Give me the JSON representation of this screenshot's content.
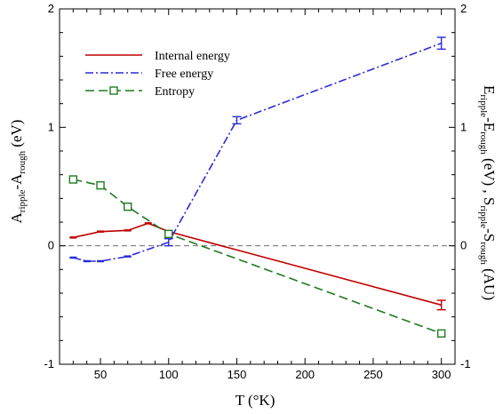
{
  "chart_data": {
    "type": "line",
    "xlabel": "T (°K)",
    "ylabel_left": {
      "main": "A",
      "sub1": "ripple",
      "mid": "-A",
      "sub2": "rough",
      "unit": " (eV)"
    },
    "ylabel_right": {
      "p1": "E",
      "s1": "ripple",
      "p2": "-E",
      "s2": "rough",
      "p3": " (eV) , S",
      "s3": "ripple",
      "p4": "-S",
      "s4": "rough",
      "p5": " (AU)"
    },
    "xlim": [
      20,
      310
    ],
    "ylim": [
      -1,
      2
    ],
    "x_ticks": [
      "50",
      "100",
      "150",
      "200",
      "250",
      "300"
    ],
    "y_ticks": [
      "-1",
      "0",
      "1",
      "2"
    ],
    "grid": false,
    "zero_line": true,
    "legend_position": "top-left",
    "series": [
      {
        "name": "Internal energy",
        "color": "#c00000",
        "style": "solid",
        "x": [
          30,
          50,
          70,
          85,
          100,
          300
        ],
        "y": [
          0.07,
          0.12,
          0.13,
          0.19,
          0.12,
          -0.5
        ],
        "err": [
          0,
          0,
          0,
          0,
          0,
          0.04
        ]
      },
      {
        "name": "Free energy",
        "color": "#2b2bd6",
        "style": "dashdot",
        "x": [
          30,
          40,
          50,
          70,
          100,
          150,
          300
        ],
        "y": [
          -0.1,
          -0.13,
          -0.13,
          -0.09,
          0.03,
          1.06,
          1.71
        ],
        "err": [
          0,
          0,
          0,
          0,
          0.03,
          0.03,
          0.05
        ]
      },
      {
        "name": "Entropy",
        "color": "#1f7a1f",
        "style": "dashed",
        "marker": "square",
        "x": [
          30,
          50,
          70,
          100,
          300
        ],
        "y": [
          0.56,
          0.51,
          0.33,
          0.1,
          -0.74
        ],
        "err": [
          0,
          0,
          0,
          0,
          0
        ]
      }
    ]
  }
}
